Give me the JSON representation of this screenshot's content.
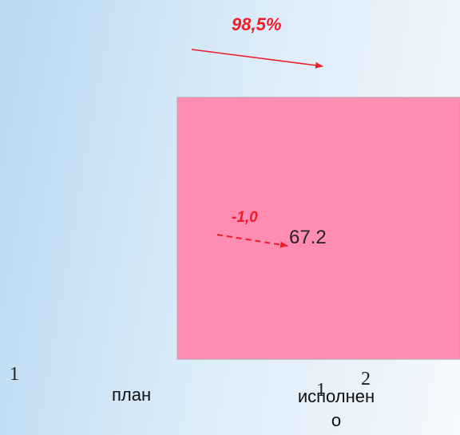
{
  "annotations": {
    "top": "98,5%",
    "delta": "-1,0"
  },
  "bar_label": "67.2",
  "axis": {
    "left": "1",
    "categories": [
      "план",
      "исполнено"
    ],
    "right": [
      "1",
      "2"
    ]
  }
}
